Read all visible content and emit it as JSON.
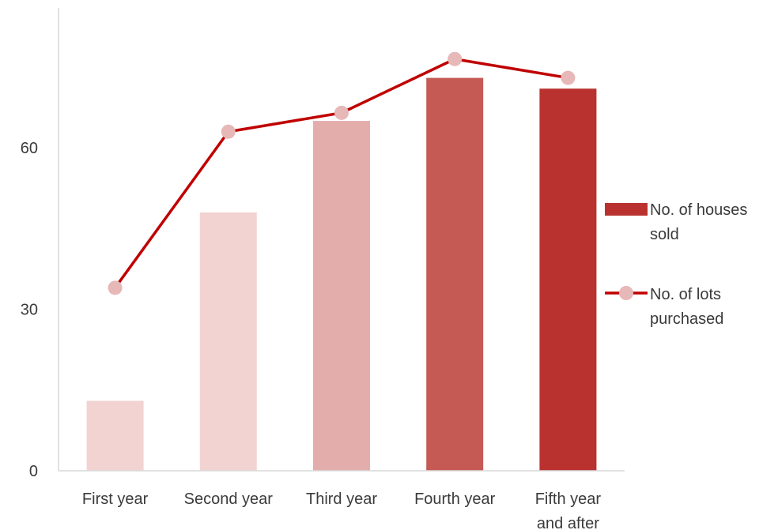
{
  "chart_data": {
    "type": "bar",
    "categories": [
      [
        "First year"
      ],
      [
        "Second year"
      ],
      [
        "Third year"
      ],
      [
        "Fourth year"
      ],
      [
        "Fifth year",
        "and after"
      ]
    ],
    "series": [
      {
        "name": [
          "No. of houses",
          "sold"
        ],
        "type": "bar",
        "values": [
          13,
          48,
          65,
          73,
          71
        ],
        "colors": [
          "#f2d3d2",
          "#f2d3d2",
          "#e3adac",
          "#c55a55",
          "#b9322f"
        ]
      },
      {
        "name": [
          "No. of lots",
          "purchased"
        ],
        "type": "line",
        "values": [
          34,
          63,
          66.5,
          76.5,
          73
        ],
        "line_color": "#c00000",
        "marker_color": "#e6b8b7"
      }
    ],
    "yticks": [
      0,
      30,
      60
    ],
    "ylim": [
      0,
      86
    ],
    "grid": false,
    "legend_position": "right"
  }
}
